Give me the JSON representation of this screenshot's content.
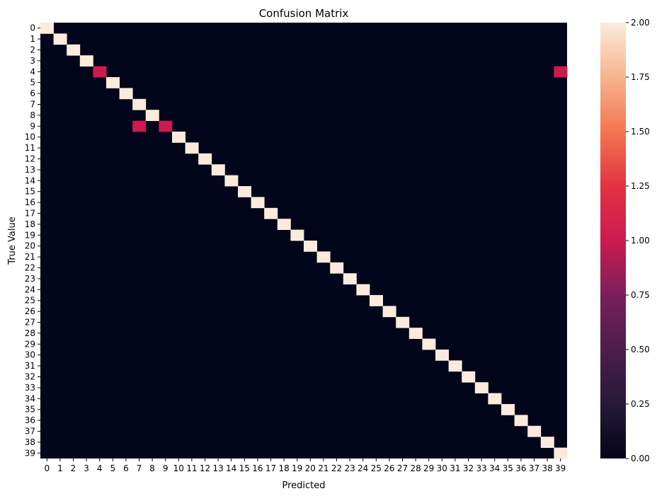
{
  "chart_data": {
    "type": "heatmap",
    "title": "Confusion Matrix",
    "xlabel": "Predicted",
    "ylabel": "True Value",
    "x_categories": [
      "0",
      "1",
      "2",
      "3",
      "4",
      "5",
      "6",
      "7",
      "8",
      "9",
      "10",
      "11",
      "12",
      "13",
      "14",
      "15",
      "16",
      "17",
      "18",
      "19",
      "20",
      "21",
      "22",
      "23",
      "24",
      "25",
      "26",
      "27",
      "28",
      "29",
      "30",
      "31",
      "32",
      "33",
      "34",
      "35",
      "36",
      "37",
      "38",
      "39"
    ],
    "y_categories": [
      "0",
      "1",
      "2",
      "3",
      "4",
      "5",
      "6",
      "7",
      "8",
      "9",
      "10",
      "11",
      "12",
      "13",
      "14",
      "15",
      "16",
      "17",
      "18",
      "19",
      "20",
      "21",
      "22",
      "23",
      "24",
      "25",
      "26",
      "27",
      "28",
      "29",
      "30",
      "31",
      "32",
      "33",
      "34",
      "35",
      "36",
      "37",
      "38",
      "39"
    ],
    "default_value": 0,
    "cells": [
      {
        "true": 0,
        "pred": 0,
        "value": 2
      },
      {
        "true": 1,
        "pred": 1,
        "value": 2
      },
      {
        "true": 2,
        "pred": 2,
        "value": 2
      },
      {
        "true": 3,
        "pred": 3,
        "value": 2
      },
      {
        "true": 4,
        "pred": 4,
        "value": 1
      },
      {
        "true": 4,
        "pred": 39,
        "value": 1
      },
      {
        "true": 5,
        "pred": 5,
        "value": 2
      },
      {
        "true": 6,
        "pred": 6,
        "value": 2
      },
      {
        "true": 7,
        "pred": 7,
        "value": 2
      },
      {
        "true": 8,
        "pred": 8,
        "value": 2
      },
      {
        "true": 9,
        "pred": 7,
        "value": 1
      },
      {
        "true": 9,
        "pred": 9,
        "value": 1
      },
      {
        "true": 10,
        "pred": 10,
        "value": 2
      },
      {
        "true": 11,
        "pred": 11,
        "value": 2
      },
      {
        "true": 12,
        "pred": 12,
        "value": 2
      },
      {
        "true": 13,
        "pred": 13,
        "value": 2
      },
      {
        "true": 14,
        "pred": 14,
        "value": 2
      },
      {
        "true": 15,
        "pred": 15,
        "value": 2
      },
      {
        "true": 16,
        "pred": 16,
        "value": 2
      },
      {
        "true": 17,
        "pred": 17,
        "value": 2
      },
      {
        "true": 18,
        "pred": 18,
        "value": 2
      },
      {
        "true": 19,
        "pred": 19,
        "value": 2
      },
      {
        "true": 20,
        "pred": 20,
        "value": 2
      },
      {
        "true": 21,
        "pred": 21,
        "value": 2
      },
      {
        "true": 22,
        "pred": 22,
        "value": 2
      },
      {
        "true": 23,
        "pred": 23,
        "value": 2
      },
      {
        "true": 24,
        "pred": 24,
        "value": 2
      },
      {
        "true": 25,
        "pred": 25,
        "value": 2
      },
      {
        "true": 26,
        "pred": 26,
        "value": 2
      },
      {
        "true": 27,
        "pred": 27,
        "value": 2
      },
      {
        "true": 28,
        "pred": 28,
        "value": 2
      },
      {
        "true": 29,
        "pred": 29,
        "value": 2
      },
      {
        "true": 30,
        "pred": 30,
        "value": 2
      },
      {
        "true": 31,
        "pred": 31,
        "value": 2
      },
      {
        "true": 32,
        "pred": 32,
        "value": 2
      },
      {
        "true": 33,
        "pred": 33,
        "value": 2
      },
      {
        "true": 34,
        "pred": 34,
        "value": 2
      },
      {
        "true": 35,
        "pred": 35,
        "value": 2
      },
      {
        "true": 36,
        "pred": 36,
        "value": 2
      },
      {
        "true": 37,
        "pred": 37,
        "value": 2
      },
      {
        "true": 38,
        "pred": 38,
        "value": 2
      },
      {
        "true": 39,
        "pred": 39,
        "value": 2
      }
    ],
    "colorbar": {
      "vmin": 0,
      "vmax": 2,
      "ticks": [
        "0.00",
        "0.25",
        "0.50",
        "0.75",
        "1.00",
        "1.25",
        "1.50",
        "1.75",
        "2.00"
      ]
    },
    "colors": {
      "low": "#03051a",
      "mid": "#cb1b4f",
      "high": "#faebdd"
    },
    "grid": false,
    "legend": "colorbar-right"
  }
}
